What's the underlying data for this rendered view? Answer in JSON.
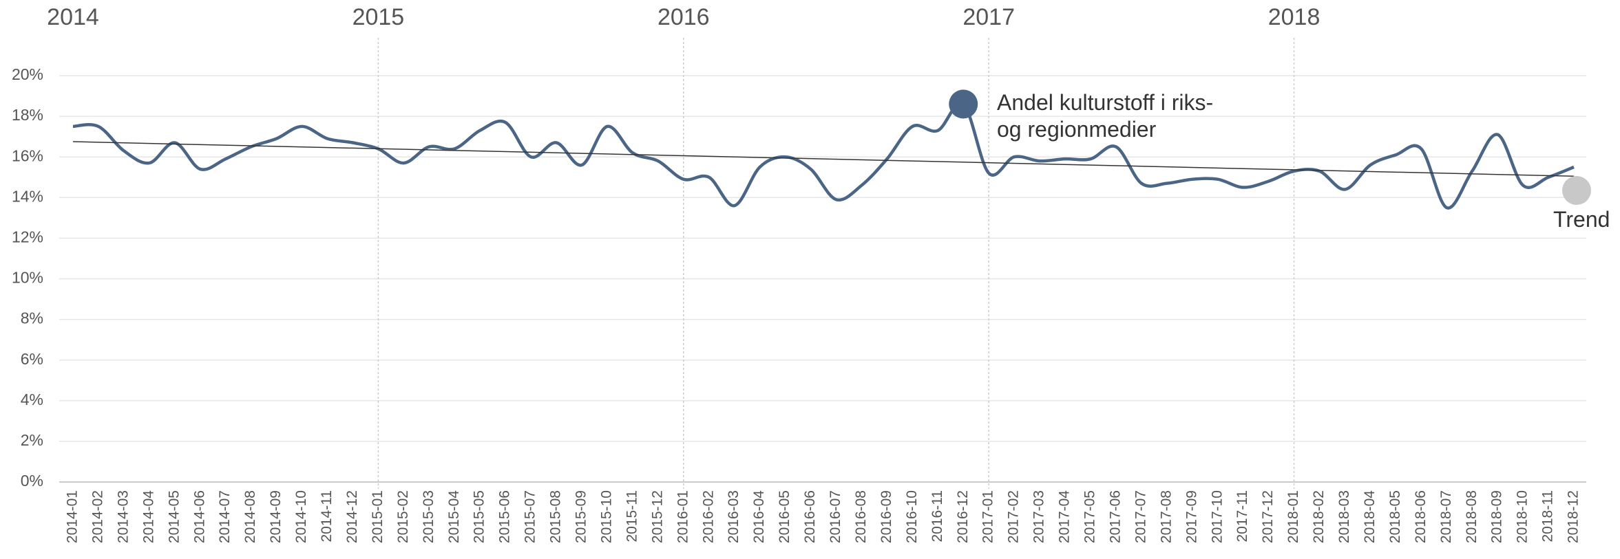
{
  "chart_data": {
    "type": "line",
    "categories": [
      "2014-01",
      "2014-02",
      "2014-03",
      "2014-04",
      "2014-05",
      "2014-06",
      "2014-07",
      "2014-08",
      "2014-09",
      "2014-10",
      "2014-11",
      "2014-12",
      "2015-01",
      "2015-02",
      "2015-03",
      "2015-04",
      "2015-05",
      "2015-06",
      "2015-07",
      "2015-08",
      "2015-09",
      "2015-10",
      "2015-11",
      "2015-12",
      "2016-01",
      "2016-02",
      "2016-03",
      "2016-04",
      "2016-05",
      "2016-06",
      "2016-07",
      "2016-08",
      "2016-09",
      "2016-10",
      "2016-11",
      "2016-12",
      "2017-01",
      "2017-02",
      "2017-03",
      "2017-04",
      "2017-05",
      "2017-06",
      "2017-07",
      "2017-08",
      "2017-09",
      "2017-10",
      "2017-11",
      "2017-12",
      "2018-01",
      "2018-02",
      "2018-03",
      "2018-04",
      "2018-05",
      "2018-06",
      "2018-07",
      "2018-08",
      "2018-09",
      "2018-10",
      "2018-11",
      "2018-12"
    ],
    "years": [
      {
        "value": "2014-01",
        "label": "2014"
      },
      {
        "value": "2015-01",
        "label": "2015"
      },
      {
        "value": "2016-01",
        "label": "2016"
      },
      {
        "value": "2017-01",
        "label": "2017"
      },
      {
        "value": "2018-01",
        "label": "2018"
      }
    ],
    "series": [
      {
        "name": "Andel kulturstoff i riks- og regionmedier",
        "color": "#4a6585",
        "values": [
          17.5,
          17.5,
          16.3,
          15.7,
          16.7,
          15.4,
          15.9,
          16.5,
          16.9,
          17.5,
          16.9,
          16.7,
          16.4,
          15.7,
          16.5,
          16.4,
          17.3,
          17.7,
          16.0,
          16.7,
          15.6,
          17.5,
          16.2,
          15.8,
          14.9,
          15.0,
          13.6,
          15.5,
          16.0,
          15.4,
          13.9,
          14.6,
          15.9,
          17.5,
          17.3,
          18.6,
          15.2,
          16.0,
          15.8,
          15.9,
          15.9,
          16.5,
          14.7,
          14.7,
          14.9,
          14.9,
          14.5,
          14.8,
          15.3,
          15.3,
          14.4,
          15.6,
          16.1,
          16.4,
          13.5,
          15.3,
          17.1,
          14.6,
          15.0,
          15.5
        ]
      }
    ],
    "trend": {
      "name": "Trend",
      "color": "#333333",
      "marker_color": "#c8c8c8",
      "x": [
        "2014-01",
        "2018-12"
      ],
      "values": [
        16.75,
        15.05
      ]
    },
    "ylim": [
      0,
      20
    ],
    "yticks": [
      {
        "value": 0,
        "label": "0%"
      },
      {
        "value": 2,
        "label": "2%"
      },
      {
        "value": 4,
        "label": "4%"
      },
      {
        "value": 6,
        "label": "6%"
      },
      {
        "value": 8,
        "label": "8%"
      },
      {
        "value": 10,
        "label": "10%"
      },
      {
        "value": 12,
        "label": "12%"
      },
      {
        "value": 14,
        "label": "14%"
      },
      {
        "value": 16,
        "label": "16%"
      },
      {
        "value": 18,
        "label": "18%"
      },
      {
        "value": 20,
        "label": "20%"
      }
    ],
    "grid": true
  }
}
